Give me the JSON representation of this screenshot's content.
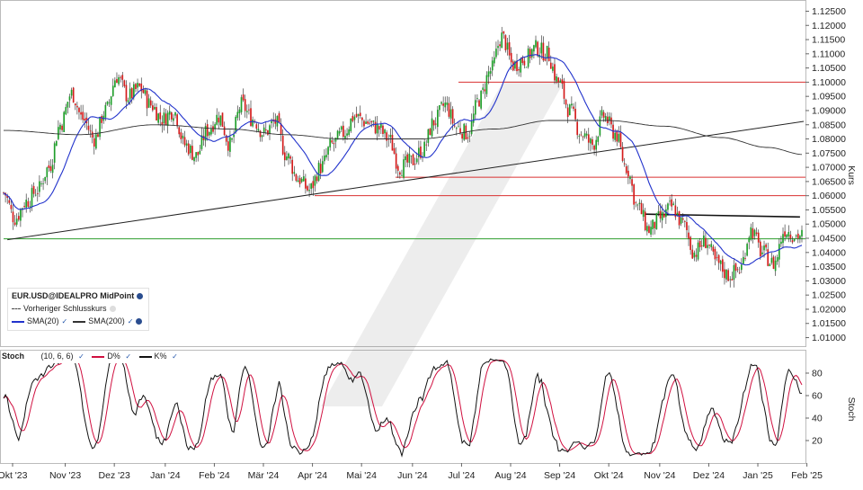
{
  "chart_data": [
    {
      "type": "candlestick",
      "instrument": "EUR.USD@IDEALPRO MidPoint",
      "ylabel": "Kurs",
      "y_ticks": [
        "1.12500",
        "1.12000",
        "1.11500",
        "1.11000",
        "1.10500",
        "1.10000",
        "1.09500",
        "1.09000",
        "1.08500",
        "1.08000",
        "1.07500",
        "1.07000",
        "1.06500",
        "1.06000",
        "1.05500",
        "1.05000",
        "1.04500",
        "1.04000",
        "1.03500",
        "1.03000",
        "1.02500",
        "1.02000",
        "1.01500",
        "1.01000"
      ],
      "ylim": [
        1.007,
        1.128
      ],
      "x_ticks": [
        "Okt '23",
        "Nov '23",
        "Dez '23",
        "Jan '24",
        "Feb '24",
        "Mär '24",
        "Apr '24",
        "Mai '24",
        "Jun '24",
        "Jul '24",
        "Aug '24",
        "Sep '24",
        "Okt '24",
        "Nov '24",
        "Dez '24",
        "Jan '25",
        "Feb '25"
      ],
      "close_anchors": [
        [
          0,
          1.061
        ],
        [
          6,
          1.052
        ],
        [
          12,
          1.058
        ],
        [
          18,
          1.062
        ],
        [
          24,
          1.07
        ],
        [
          30,
          1.085
        ],
        [
          36,
          1.096
        ],
        [
          42,
          1.087
        ],
        [
          48,
          1.08
        ],
        [
          54,
          1.09
        ],
        [
          60,
          1.102
        ],
        [
          66,
          1.095
        ],
        [
          72,
          1.098
        ],
        [
          78,
          1.092
        ],
        [
          84,
          1.087
        ],
        [
          90,
          1.09
        ],
        [
          96,
          1.078
        ],
        [
          102,
          1.074
        ],
        [
          108,
          1.083
        ],
        [
          114,
          1.088
        ],
        [
          120,
          1.078
        ],
        [
          126,
          1.092
        ],
        [
          132,
          1.087
        ],
        [
          138,
          1.082
        ],
        [
          144,
          1.086
        ],
        [
          150,
          1.074
        ],
        [
          156,
          1.066
        ],
        [
          162,
          1.062
        ],
        [
          168,
          1.07
        ],
        [
          174,
          1.078
        ],
        [
          180,
          1.082
        ],
        [
          186,
          1.088
        ],
        [
          192,
          1.086
        ],
        [
          198,
          1.084
        ],
        [
          204,
          1.08
        ],
        [
          210,
          1.07
        ],
        [
          216,
          1.072
        ],
        [
          222,
          1.076
        ],
        [
          228,
          1.086
        ],
        [
          234,
          1.092
        ],
        [
          240,
          1.084
        ],
        [
          246,
          1.082
        ],
        [
          252,
          1.094
        ],
        [
          258,
          1.104
        ],
        [
          264,
          1.116
        ],
        [
          270,
          1.106
        ],
        [
          276,
          1.108
        ],
        [
          282,
          1.112
        ],
        [
          288,
          1.11
        ],
        [
          294,
          1.1
        ],
        [
          300,
          1.09
        ],
        [
          306,
          1.082
        ],
        [
          312,
          1.078
        ],
        [
          318,
          1.088
        ],
        [
          324,
          1.082
        ],
        [
          330,
          1.07
        ],
        [
          336,
          1.056
        ],
        [
          342,
          1.048
        ],
        [
          348,
          1.052
        ],
        [
          354,
          1.056
        ],
        [
          360,
          1.05
        ],
        [
          366,
          1.04
        ],
        [
          372,
          1.044
        ],
        [
          378,
          1.036
        ],
        [
          384,
          1.032
        ],
        [
          390,
          1.034
        ],
        [
          396,
          1.048
        ],
        [
          402,
          1.04
        ],
        [
          408,
          1.036
        ],
        [
          414,
          1.048
        ],
        [
          420,
          1.046
        ]
      ],
      "n_days": 424,
      "series": [
        {
          "name": "SMA(20)",
          "color": "#2233cc"
        },
        {
          "name": "SMA(200)",
          "color": "#333333"
        }
      ],
      "sma200_anchors": [
        [
          0,
          1.083
        ],
        [
          40,
          1.0815
        ],
        [
          80,
          1.085
        ],
        [
          120,
          1.0835
        ],
        [
          150,
          1.0815
        ],
        [
          180,
          1.08
        ],
        [
          220,
          1.08
        ],
        [
          260,
          1.0835
        ],
        [
          290,
          1.0865
        ],
        [
          320,
          1.0865
        ],
        [
          350,
          1.0845
        ],
        [
          380,
          1.0805
        ],
        [
          405,
          1.077
        ],
        [
          424,
          1.0745
        ]
      ],
      "horizontal_lines": [
        {
          "value": 1.1,
          "color": "#d93030"
        },
        {
          "value": 1.0665,
          "color": "#d93030"
        },
        {
          "value": 1.06,
          "color": "#d93030"
        },
        {
          "value": 1.0448,
          "color": "#2e9e2e"
        }
      ],
      "trendlines": [
        {
          "from": [
            2,
            1.0445
          ],
          "to": [
            424,
            1.0862
          ],
          "color": "#222222"
        },
        {
          "from": [
            340,
            1.0535
          ],
          "to": [
            422,
            1.0525
          ],
          "color": "#111111"
        }
      ],
      "legend": {
        "title": "EUR.USD@IDEALPRO MidPoint",
        "prev_close": "Vorheriger Schlusskurs",
        "sma20": "SMA(20)",
        "sma200": "SMA(200)"
      }
    },
    {
      "type": "line",
      "name": "Stoch",
      "params": "(10, 6, 6)",
      "ylabel": "Stoch",
      "y_ticks": [
        20,
        40,
        60,
        80
      ],
      "ylim": [
        0,
        100
      ],
      "series": [
        {
          "name": "D%",
          "color": "#d01040"
        },
        {
          "name": "K%",
          "color": "#111111"
        }
      ]
    }
  ]
}
